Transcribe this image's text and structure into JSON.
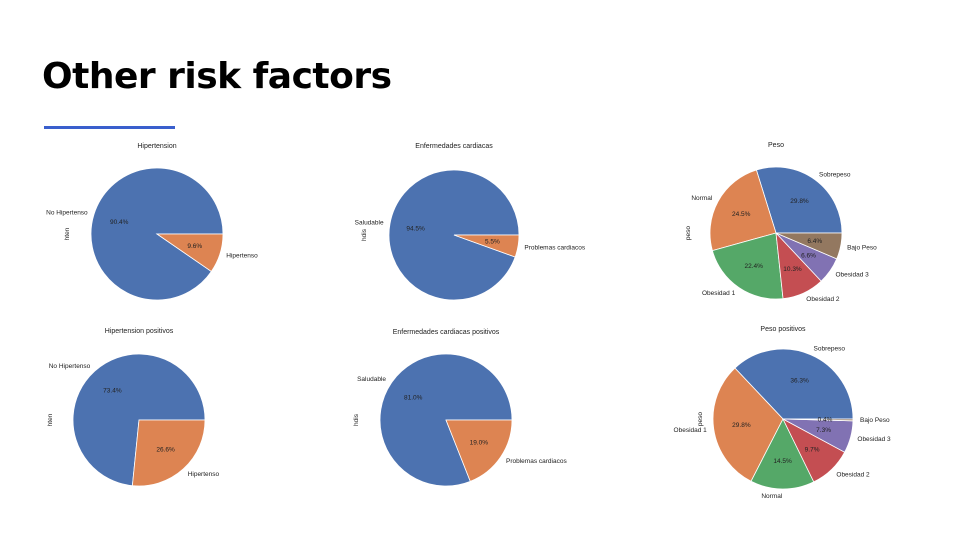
{
  "slide": {
    "title": "Other risk factors",
    "accent_color": "#3a5fcd"
  },
  "chart_data": [
    {
      "type": "pie",
      "title": "Hipertension",
      "ylabel": "hten",
      "labels": [
        "No Hipertenso",
        "Hipertenso"
      ],
      "values": [
        90.4,
        9.6
      ],
      "pct_labels": [
        "90.4%",
        "9.6%"
      ],
      "colors": [
        "#4c72b0",
        "#dd8452"
      ]
    },
    {
      "type": "pie",
      "title": "Enfermedades cardiacas",
      "ylabel": "hdis",
      "labels": [
        "Saludable",
        "Problemas cardiacos"
      ],
      "values": [
        94.5,
        5.5
      ],
      "pct_labels": [
        "94.5%",
        "5.5%"
      ],
      "colors": [
        "#4c72b0",
        "#dd8452"
      ]
    },
    {
      "type": "pie",
      "title": "Peso",
      "ylabel": "peso",
      "labels": [
        "Sobrepeso",
        "Normal",
        "Obesidad 1",
        "Obesidad 2",
        "Obesidad 3",
        "Bajo Peso"
      ],
      "values": [
        29.8,
        24.5,
        22.4,
        10.3,
        6.6,
        6.4
      ],
      "pct_labels": [
        "29.8%",
        "24.5%",
        "22.4%",
        "10.3%",
        "6.6%",
        "6.4%"
      ],
      "colors": [
        "#4c72b0",
        "#dd8452",
        "#55a868",
        "#c44e52",
        "#8172b3",
        "#937860"
      ]
    },
    {
      "type": "pie",
      "title": "Hipertension positivos",
      "ylabel": "hten",
      "labels": [
        "No Hipertenso",
        "Hipertenso"
      ],
      "values": [
        73.4,
        26.6
      ],
      "pct_labels": [
        "73.4%",
        "26.6%"
      ],
      "colors": [
        "#4c72b0",
        "#dd8452"
      ]
    },
    {
      "type": "pie",
      "title": "Enfermedades cardiacas positivos",
      "ylabel": "hdis",
      "labels": [
        "Saludable",
        "Problemas cardiacos"
      ],
      "values": [
        81.0,
        19.0
      ],
      "pct_labels": [
        "81.0%",
        "19.0%"
      ],
      "colors": [
        "#4c72b0",
        "#dd8452"
      ]
    },
    {
      "type": "pie",
      "title": "Peso positivos",
      "ylabel": "peso",
      "labels": [
        "Sobrepeso",
        "Obesidad 1",
        "Normal",
        "Obesidad 2",
        "Obesidad 3",
        "Bajo Peso"
      ],
      "values": [
        36.3,
        29.8,
        14.5,
        9.7,
        7.3,
        0.4
      ],
      "pct_labels": [
        "36.3%",
        "29.8%",
        "14.5%",
        "9.7%",
        "7.3%",
        "0.4%"
      ],
      "colors": [
        "#4c72b0",
        "#dd8452",
        "#55a868",
        "#c44e52",
        "#8172b3",
        "#937860"
      ]
    }
  ]
}
